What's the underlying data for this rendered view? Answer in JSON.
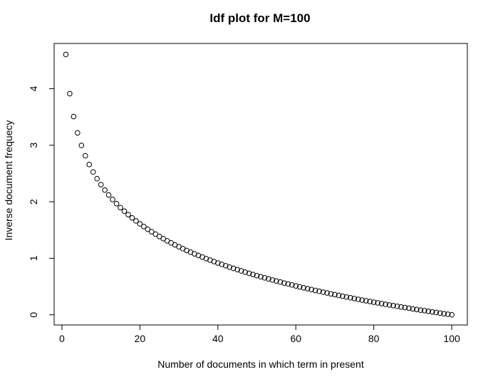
{
  "chart_data": {
    "type": "scatter",
    "title": "Idf plot for M=100",
    "xlabel": "Number of documents in which term in present",
    "ylabel": "Inverse document frequecy",
    "xlim": [
      -2,
      104
    ],
    "ylim": [
      -0.18,
      4.8
    ],
    "xticks": [
      0,
      20,
      40,
      60,
      80,
      100
    ],
    "yticks": [
      0,
      1,
      2,
      3,
      4
    ],
    "marker": "open-circle",
    "grid": false,
    "x": [
      1,
      2,
      3,
      4,
      5,
      6,
      7,
      8,
      9,
      10,
      11,
      12,
      13,
      14,
      15,
      16,
      17,
      18,
      19,
      20,
      21,
      22,
      23,
      24,
      25,
      26,
      27,
      28,
      29,
      30,
      31,
      32,
      33,
      34,
      35,
      36,
      37,
      38,
      39,
      40,
      41,
      42,
      43,
      44,
      45,
      46,
      47,
      48,
      49,
      50,
      51,
      52,
      53,
      54,
      55,
      56,
      57,
      58,
      59,
      60,
      61,
      62,
      63,
      64,
      65,
      66,
      67,
      68,
      69,
      70,
      71,
      72,
      73,
      74,
      75,
      76,
      77,
      78,
      79,
      80,
      81,
      82,
      83,
      84,
      85,
      86,
      87,
      88,
      89,
      90,
      91,
      92,
      93,
      94,
      95,
      96,
      97,
      98,
      99,
      100
    ],
    "y": [
      4.605,
      3.912,
      3.507,
      3.219,
      2.996,
      2.813,
      2.659,
      2.526,
      2.408,
      2.303,
      2.207,
      2.12,
      2.04,
      1.966,
      1.897,
      1.833,
      1.772,
      1.715,
      1.661,
      1.609,
      1.561,
      1.514,
      1.47,
      1.427,
      1.386,
      1.347,
      1.309,
      1.273,
      1.238,
      1.204,
      1.171,
      1.139,
      1.109,
      1.079,
      1.05,
      1.022,
      0.994,
      0.968,
      0.942,
      0.916,
      0.892,
      0.868,
      0.844,
      0.821,
      0.799,
      0.777,
      0.755,
      0.734,
      0.713,
      0.693,
      0.673,
      0.654,
      0.635,
      0.616,
      0.598,
      0.58,
      0.562,
      0.545,
      0.528,
      0.511,
      0.494,
      0.478,
      0.462,
      0.446,
      0.431,
      0.416,
      0.4,
      0.386,
      0.371,
      0.357,
      0.342,
      0.329,
      0.315,
      0.301,
      0.288,
      0.274,
      0.261,
      0.248,
      0.236,
      0.223,
      0.211,
      0.198,
      0.186,
      0.174,
      0.163,
      0.151,
      0.139,
      0.128,
      0.117,
      0.105,
      0.094,
      0.083,
      0.073,
      0.062,
      0.051,
      0.041,
      0.03,
      0.02,
      0.01,
      0.0
    ]
  }
}
